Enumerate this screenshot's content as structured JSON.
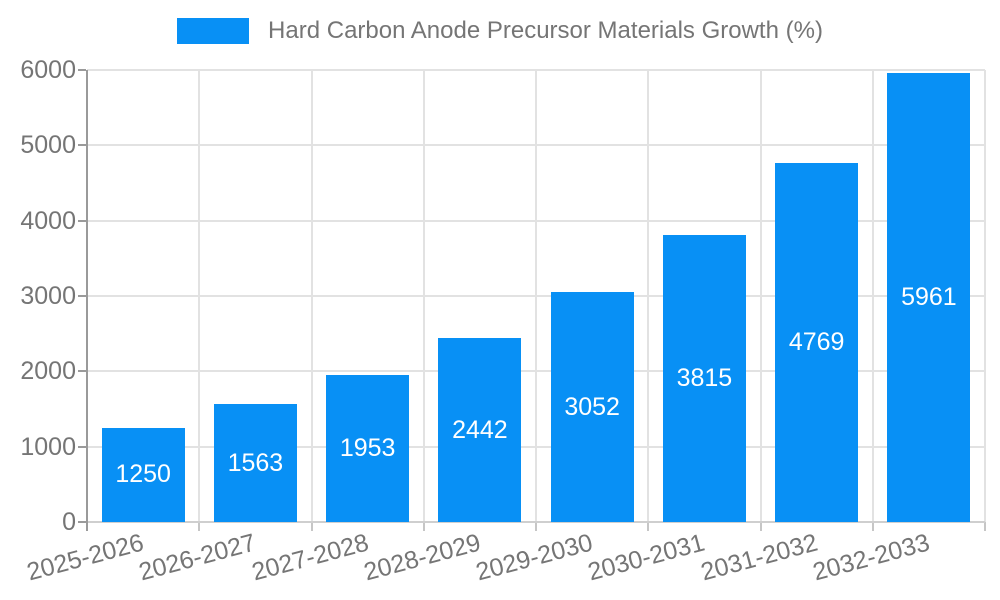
{
  "legend": {
    "label": "Hard Carbon Anode Precursor Materials Growth (%)"
  },
  "chart_data": {
    "type": "bar",
    "series_name": "Hard Carbon Anode Precursor Materials Growth (%)",
    "categories": [
      "2025-2026",
      "2026-2027",
      "2027-2028",
      "2028-2029",
      "2029-2030",
      "2030-2031",
      "2031-2032",
      "2032-2033"
    ],
    "values": [
      1250,
      1563,
      1953,
      2442,
      3052,
      3815,
      4769,
      5961
    ],
    "title": "",
    "xlabel": "",
    "ylabel": "",
    "ylim": [
      0,
      6000
    ],
    "yticks": [
      0,
      1000,
      2000,
      3000,
      4000,
      5000,
      6000
    ],
    "grid": true,
    "legend_position": "top-center",
    "value_label_position": "inside-center",
    "x_tick_rotation_deg": -15
  },
  "colors": {
    "bar": "#0890f5",
    "grid": "#e2e2e2",
    "axis": "#9a9a9a",
    "axis_bottom": "#cfcfcf",
    "minor_tick": "#c6c6c6",
    "text": "#757575",
    "value_label": "#ffffff",
    "background": "#ffffff"
  }
}
